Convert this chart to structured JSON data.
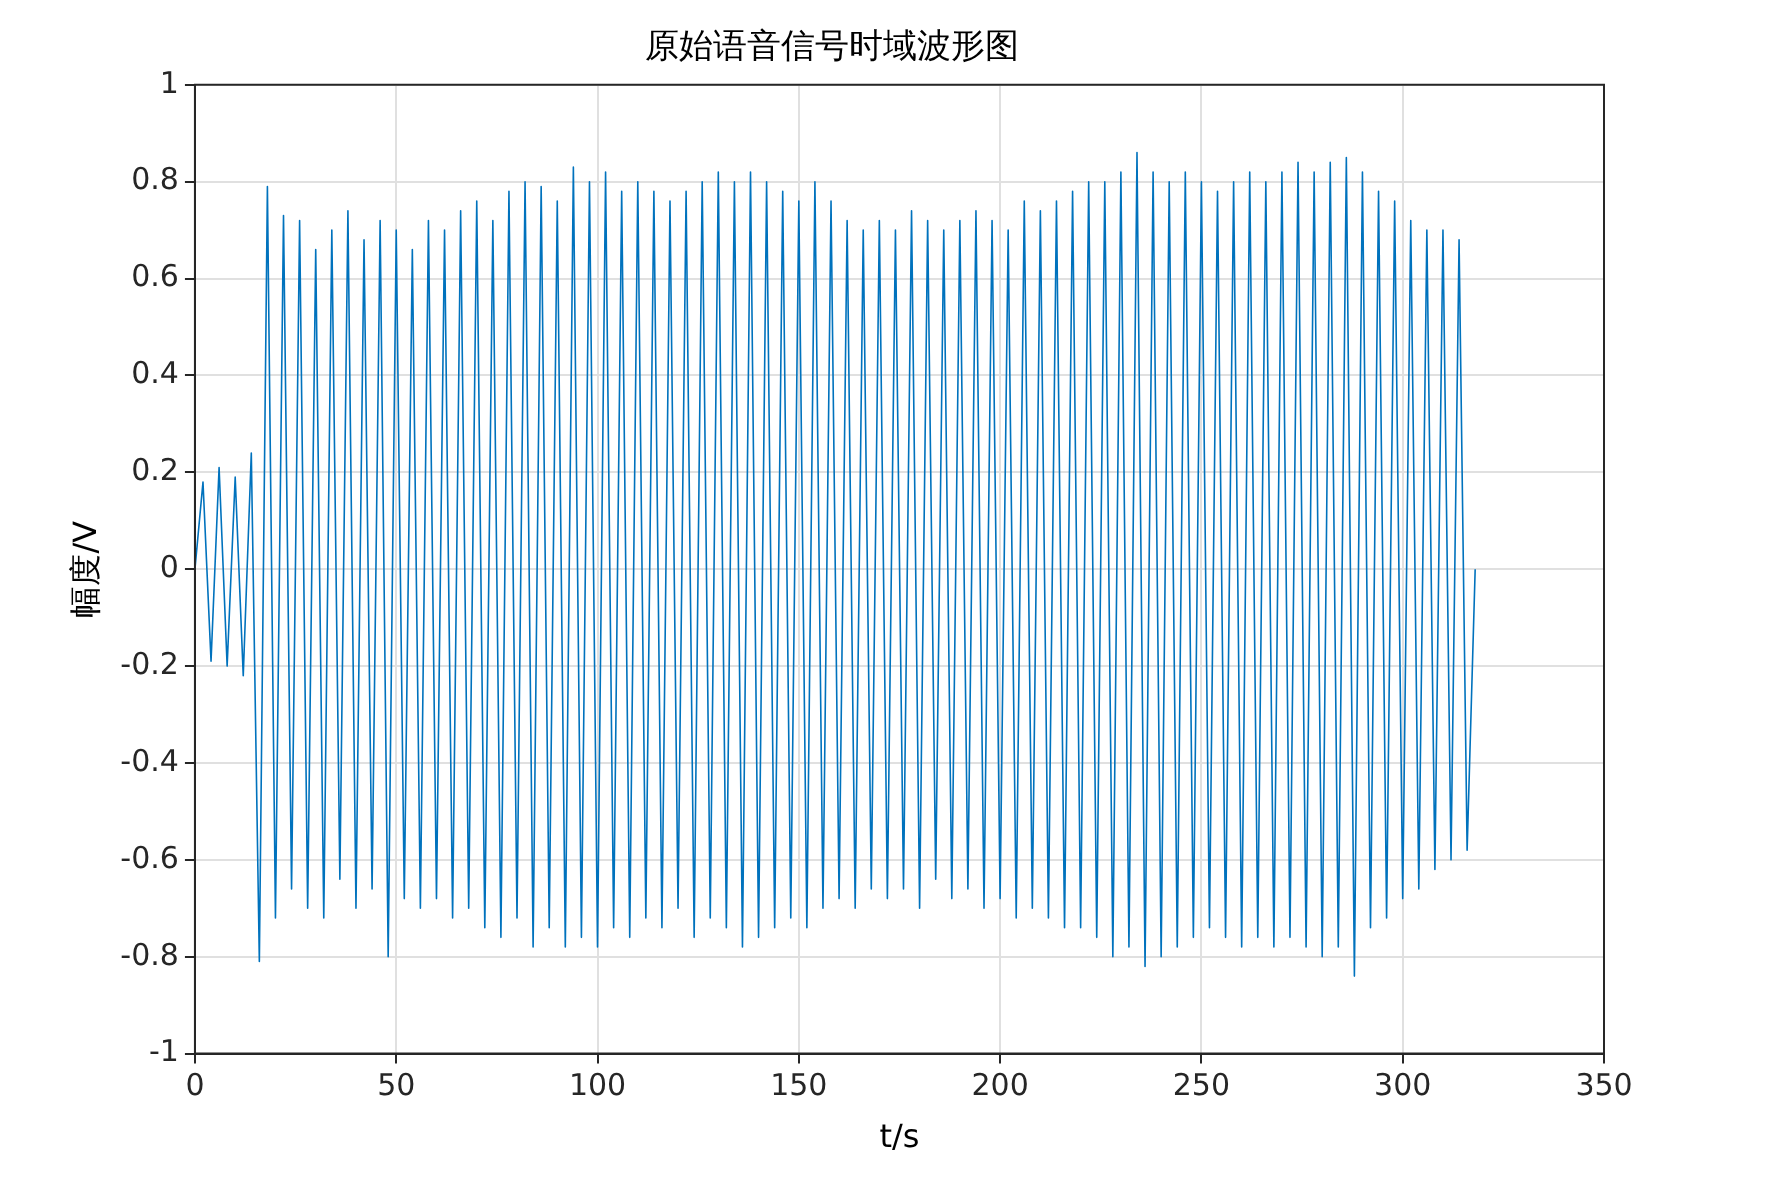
{
  "chart_data": {
    "type": "line",
    "title": "原始语音信号时域波形图",
    "xlabel": "t/s",
    "ylabel": "幅度/V",
    "x": [
      0,
      2,
      4,
      6,
      8,
      10,
      12,
      14,
      16,
      18,
      20,
      22,
      24,
      26,
      28,
      30,
      32,
      34,
      36,
      38,
      40,
      42,
      44,
      46,
      48,
      50,
      52,
      54,
      56,
      58,
      60,
      62,
      64,
      66,
      68,
      70,
      72,
      74,
      76,
      78,
      80,
      82,
      84,
      86,
      88,
      90,
      92,
      94,
      96,
      98,
      100,
      102,
      104,
      106,
      108,
      110,
      112,
      114,
      116,
      118,
      120,
      122,
      124,
      126,
      128,
      130,
      132,
      134,
      136,
      138,
      140,
      142,
      144,
      146,
      148,
      150,
      152,
      154,
      156,
      158,
      160,
      162,
      164,
      166,
      168,
      170,
      172,
      174,
      176,
      178,
      180,
      182,
      184,
      186,
      188,
      190,
      192,
      194,
      196,
      198,
      200,
      202,
      204,
      206,
      208,
      210,
      212,
      214,
      216,
      218,
      220,
      222,
      224,
      226,
      228,
      230,
      232,
      234,
      236,
      238,
      240,
      242,
      244,
      246,
      248,
      250,
      252,
      254,
      256,
      258,
      260,
      262,
      264,
      266,
      268,
      270,
      272,
      274,
      276,
      278,
      280,
      282,
      284,
      286,
      288,
      290,
      292,
      294,
      296,
      298,
      300,
      302,
      304,
      306,
      308,
      310,
      312,
      314,
      316,
      318
    ],
    "series": [
      {
        "color": "#0072bd",
        "values": [
          0,
          0.18,
          -0.19,
          0.21,
          -0.2,
          0.19,
          -0.22,
          0.24,
          -0.81,
          0.79,
          -0.72,
          0.73,
          -0.66,
          0.72,
          -0.7,
          0.66,
          -0.72,
          0.7,
          -0.64,
          0.74,
          -0.7,
          0.68,
          -0.66,
          0.72,
          -0.8,
          0.7,
          -0.68,
          0.66,
          -0.7,
          0.72,
          -0.68,
          0.7,
          -0.72,
          0.74,
          -0.7,
          0.76,
          -0.74,
          0.72,
          -0.76,
          0.78,
          -0.72,
          0.8,
          -0.78,
          0.79,
          -0.74,
          0.76,
          -0.78,
          0.83,
          -0.76,
          0.8,
          -0.78,
          0.82,
          -0.74,
          0.78,
          -0.76,
          0.8,
          -0.72,
          0.78,
          -0.74,
          0.76,
          -0.7,
          0.78,
          -0.76,
          0.8,
          -0.72,
          0.82,
          -0.74,
          0.8,
          -0.78,
          0.82,
          -0.76,
          0.8,
          -0.74,
          0.78,
          -0.72,
          0.76,
          -0.74,
          0.8,
          -0.7,
          0.76,
          -0.68,
          0.72,
          -0.7,
          0.7,
          -0.66,
          0.72,
          -0.68,
          0.7,
          -0.66,
          0.74,
          -0.7,
          0.72,
          -0.64,
          0.7,
          -0.68,
          0.72,
          -0.66,
          0.74,
          -0.7,
          0.72,
          -0.68,
          0.7,
          -0.72,
          0.76,
          -0.7,
          0.74,
          -0.72,
          0.76,
          -0.74,
          0.78,
          -0.74,
          0.8,
          -0.76,
          0.8,
          -0.8,
          0.82,
          -0.78,
          0.86,
          -0.82,
          0.82,
          -0.8,
          0.8,
          -0.78,
          0.82,
          -0.76,
          0.8,
          -0.74,
          0.78,
          -0.76,
          0.8,
          -0.78,
          0.82,
          -0.76,
          0.8,
          -0.78,
          0.82,
          -0.76,
          0.84,
          -0.78,
          0.82,
          -0.8,
          0.84,
          -0.78,
          0.85,
          -0.84,
          0.82,
          -0.74,
          0.78,
          -0.72,
          0.76,
          -0.68,
          0.72,
          -0.66,
          0.7,
          -0.62,
          0.7,
          -0.6,
          0.68,
          -0.58,
          0
        ]
      }
    ],
    "xlim": [
      0,
      350
    ],
    "xticks": [
      0,
      50,
      100,
      150,
      200,
      250,
      300,
      350
    ],
    "ylim": [
      -1,
      1
    ],
    "yticks": [
      -1,
      -0.8,
      -0.6,
      -0.4,
      -0.2,
      0,
      0.2,
      0.4,
      0.6,
      0.8,
      1
    ],
    "grid": true,
    "legend": false,
    "marker": "none",
    "line_style": "solid"
  }
}
